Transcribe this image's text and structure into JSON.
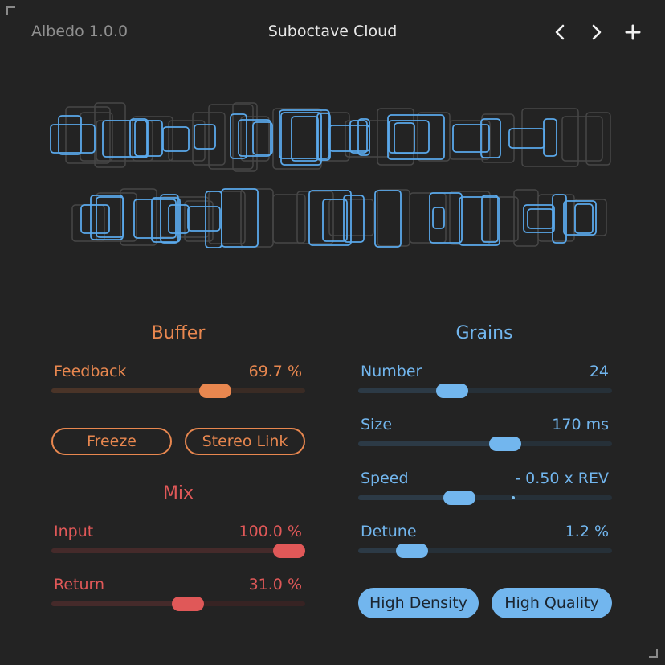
{
  "header": {
    "version": "Albedo 1.0.0",
    "preset_name": "Suboctave Cloud",
    "prev_icon": "chevron-left-icon",
    "next_icon": "chevron-right-icon",
    "add_icon": "plus-icon"
  },
  "colors": {
    "background": "#232323",
    "buffer_accent": "#e8874f",
    "mix_accent": "#e05858",
    "grains_accent": "#72b6ee",
    "grain_box_active": "#5aa8ea",
    "grain_box_faded": "#474747"
  },
  "buffer": {
    "title": "Buffer",
    "feedback": {
      "label": "Feedback",
      "value": "69.7 %",
      "position": 0.667
    },
    "freeze_label": "Freeze",
    "stereo_link_label": "Stereo Link"
  },
  "mix": {
    "title": "Mix",
    "input": {
      "label": "Input",
      "value": "100.0 %",
      "position": 1.0
    },
    "return": {
      "label": "Return",
      "value": "31.0 %",
      "position": 0.545
    }
  },
  "grains": {
    "title": "Grains",
    "number": {
      "label": "Number",
      "value": "24",
      "position": 0.35
    },
    "size": {
      "label": "Size",
      "value": "170 ms",
      "position": 0.59
    },
    "speed": {
      "label": "Speed",
      "value": "- 0.50 x REV",
      "position": 0.385,
      "center_marker": 0.5
    },
    "detune": {
      "label": "Detune",
      "value": "1.2 %",
      "position": 0.17
    },
    "high_density_label": "High Density",
    "high_quality_label": "High Quality"
  }
}
